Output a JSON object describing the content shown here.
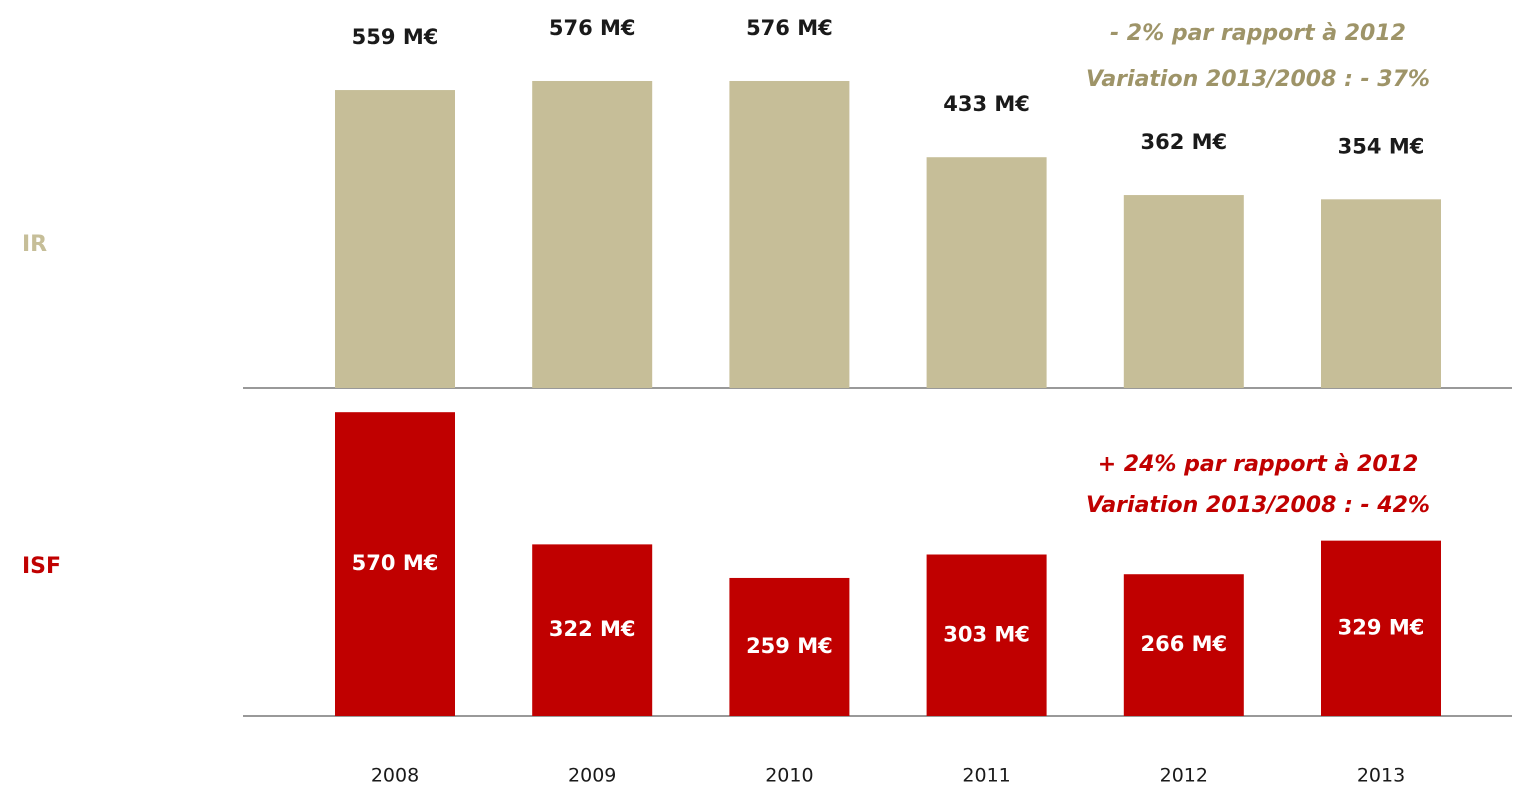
{
  "chart_data": {
    "type": "bar",
    "categories": [
      "2008",
      "2009",
      "2010",
      "2011",
      "2012",
      "2013"
    ],
    "series": [
      {
        "name": "IR",
        "color": "#c6be98",
        "label_color": "#1a1a1a",
        "annotation_color": "#9e9468",
        "values": [
          559,
          576,
          576,
          433,
          362,
          354
        ],
        "value_labels": [
          "559 M€",
          "576 M€",
          "576 M€",
          "433 M€",
          "362 M€",
          "354 M€"
        ],
        "annotations": [
          "- 2% par rapport à 2012",
          "Variation 2013/2008 : - 37%"
        ]
      },
      {
        "name": "ISF",
        "color": "#c00000",
        "label_color": "#ffffff",
        "annotation_color": "#c00000",
        "values": [
          570,
          322,
          259,
          303,
          266,
          329
        ],
        "value_labels": [
          "570 M€",
          "322 M€",
          "259 M€",
          "303 M€",
          "266 M€",
          "329 M€"
        ],
        "annotations": [
          "+ 24% par rapport à 2012",
          "Variation 2013/2008 : - 42%"
        ]
      }
    ]
  }
}
